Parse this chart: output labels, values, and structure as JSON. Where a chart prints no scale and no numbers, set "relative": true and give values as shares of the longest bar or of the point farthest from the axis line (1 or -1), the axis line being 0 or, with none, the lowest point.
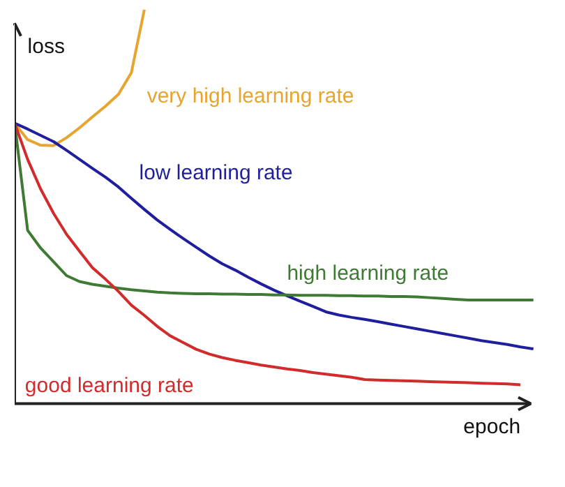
{
  "chart_data": {
    "type": "line",
    "relative": true,
    "xlabel": "epoch",
    "ylabel": "loss",
    "legend": false,
    "grid": false,
    "marker": "none",
    "line_style": "solid",
    "categories": [
      null,
      null,
      null,
      null,
      null,
      null,
      null,
      null,
      null,
      null,
      null,
      null,
      null,
      null,
      null,
      null,
      null,
      null,
      null,
      null,
      null,
      null,
      null,
      null,
      null,
      null,
      null,
      null,
      null,
      null,
      null,
      null,
      null,
      null,
      null,
      null,
      null,
      null,
      null,
      null,
      null
    ],
    "series": [
      {
        "name": "very high learning rate",
        "color": "#e6a52e",
        "values": [
          0.712,
          0.67,
          0.656,
          0.655,
          0.675,
          0.7,
          0.728,
          0.755,
          0.785,
          0.84,
          1.0,
          null,
          null,
          null,
          null,
          null,
          null,
          null,
          null,
          null,
          null,
          null,
          null,
          null,
          null,
          null,
          null,
          null,
          null,
          null,
          null,
          null,
          null,
          null,
          null,
          null,
          null,
          null,
          null,
          null,
          null
        ]
      },
      {
        "name": "low learning rate",
        "color": "#1f1f9e",
        "values": [
          0.712,
          0.697,
          0.681,
          0.665,
          0.643,
          0.62,
          0.597,
          0.575,
          0.55,
          0.521,
          0.493,
          0.466,
          0.442,
          0.419,
          0.397,
          0.375,
          0.355,
          0.339,
          0.321,
          0.304,
          0.288,
          0.274,
          0.26,
          0.247,
          0.233,
          0.225,
          0.219,
          0.214,
          0.208,
          0.202,
          0.196,
          0.19,
          0.184,
          0.178,
          0.172,
          0.166,
          0.16,
          0.155,
          0.15,
          0.144,
          0.139
        ]
      },
      {
        "name": "high learning rate",
        "color": "#3f7a34",
        "values": [
          0.712,
          0.44,
          0.395,
          0.36,
          0.325,
          0.31,
          0.303,
          0.298,
          0.293,
          0.289,
          0.286,
          0.283,
          0.281,
          0.28,
          0.279,
          0.279,
          0.278,
          0.278,
          0.277,
          0.277,
          0.276,
          0.276,
          0.275,
          0.275,
          0.275,
          0.274,
          0.274,
          0.273,
          0.273,
          0.272,
          0.272,
          0.271,
          0.269,
          0.267,
          0.265,
          0.263,
          0.263,
          0.263,
          0.263,
          0.263,
          0.263
        ]
      },
      {
        "name": "good learning rate",
        "color": "#d12b2b",
        "values": [
          0.712,
          0.62,
          0.545,
          0.483,
          0.43,
          0.387,
          0.345,
          0.316,
          0.285,
          0.25,
          0.224,
          0.196,
          0.172,
          0.155,
          0.138,
          0.126,
          0.117,
          0.11,
          0.104,
          0.098,
          0.093,
          0.088,
          0.084,
          0.079,
          0.075,
          0.071,
          0.067,
          0.061,
          0.06,
          0.059,
          0.058,
          0.057,
          0.056,
          0.055,
          0.054,
          0.053,
          0.052,
          0.051,
          0.05,
          0.048,
          null
        ]
      }
    ]
  }
}
